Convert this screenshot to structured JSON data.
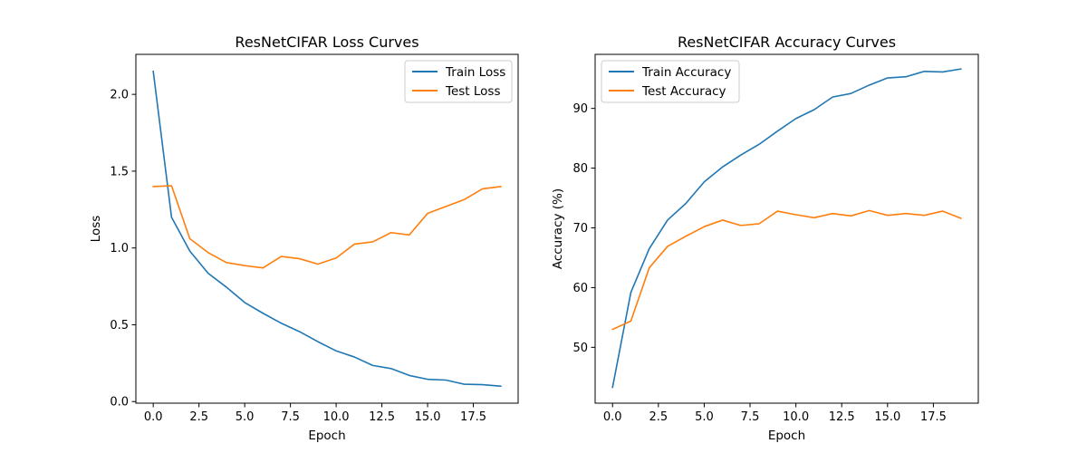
{
  "chart_data": [
    {
      "type": "line",
      "title": "ResNetCIFAR Loss Curves",
      "xlabel": "Epoch",
      "ylabel": "Loss",
      "xlim": [
        -0.95,
        19.95
      ],
      "ylim": [
        -0.0104,
        2.2604
      ],
      "xticks": [
        0.0,
        2.5,
        5.0,
        7.5,
        10.0,
        12.5,
        15.0,
        17.5
      ],
      "xtick_labels": [
        "0.0",
        "2.5",
        "5.0",
        "7.5",
        "10.0",
        "12.5",
        "15.0",
        "17.5"
      ],
      "yticks": [
        0.0,
        0.5,
        1.0,
        1.5,
        2.0
      ],
      "ytick_labels": [
        "0.0",
        "0.5",
        "1.0",
        "1.5",
        "2.0"
      ],
      "legend_loc": "upper right",
      "grid": false,
      "x": [
        0,
        1,
        2,
        3,
        4,
        5,
        6,
        7,
        8,
        9,
        10,
        11,
        12,
        13,
        14,
        15,
        16,
        17,
        18,
        19
      ],
      "series": [
        {
          "name": "Train Loss",
          "color": "#1f77b4",
          "values": [
            2.15,
            1.2,
            0.98,
            0.835,
            0.745,
            0.645,
            0.575,
            0.51,
            0.455,
            0.39,
            0.33,
            0.29,
            0.235,
            0.215,
            0.17,
            0.145,
            0.14,
            0.113,
            0.11,
            0.1
          ]
        },
        {
          "name": "Test Loss",
          "color": "#ff7f0e",
          "values": [
            1.4,
            1.405,
            1.06,
            0.97,
            0.905,
            0.885,
            0.87,
            0.945,
            0.93,
            0.895,
            0.935,
            1.025,
            1.04,
            1.1,
            1.085,
            1.225,
            1.27,
            1.315,
            1.385,
            1.4
          ]
        }
      ]
    },
    {
      "type": "line",
      "title": "ResNetCIFAR Accuracy Curves",
      "xlabel": "Epoch",
      "ylabel": "Accuracy (%)",
      "xlim": [
        -0.95,
        19.95
      ],
      "ylim": [
        40.65,
        99.05
      ],
      "xticks": [
        0.0,
        2.5,
        5.0,
        7.5,
        10.0,
        12.5,
        15.0,
        17.5
      ],
      "xtick_labels": [
        "0.0",
        "2.5",
        "5.0",
        "7.5",
        "10.0",
        "12.5",
        "15.0",
        "17.5"
      ],
      "yticks": [
        50,
        60,
        70,
        80,
        90
      ],
      "ytick_labels": [
        "50",
        "60",
        "70",
        "80",
        "90"
      ],
      "legend_loc": "upper left",
      "grid": false,
      "x": [
        0,
        1,
        2,
        3,
        4,
        5,
        6,
        7,
        8,
        9,
        10,
        11,
        12,
        13,
        14,
        15,
        16,
        17,
        18,
        19
      ],
      "series": [
        {
          "name": "Train Accuracy",
          "color": "#1f77b4",
          "values": [
            43.3,
            59.2,
            66.5,
            71.3,
            74.1,
            77.7,
            80.2,
            82.2,
            84.0,
            86.2,
            88.3,
            89.8,
            91.9,
            92.5,
            93.9,
            95.1,
            95.3,
            96.2,
            96.1,
            96.6
          ]
        },
        {
          "name": "Test Accuracy",
          "color": "#ff7f0e",
          "values": [
            53.0,
            54.4,
            63.3,
            66.9,
            68.6,
            70.2,
            71.3,
            70.4,
            70.7,
            72.8,
            72.2,
            71.7,
            72.4,
            72.0,
            72.9,
            72.1,
            72.4,
            72.1,
            72.8,
            71.6
          ]
        }
      ]
    }
  ]
}
